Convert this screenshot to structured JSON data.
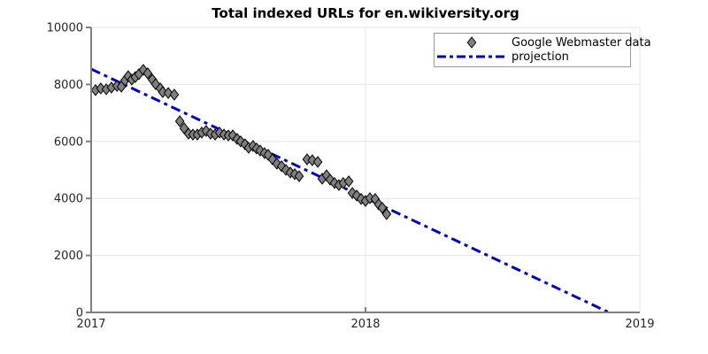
{
  "title": "Total indexed URLs for en.wikiversity.org",
  "colors": {
    "marker_fill": "#808080",
    "marker_stroke": "#000000",
    "projection": "#0000cc",
    "axis": "#7f7f7f",
    "grid": "#e4e4e4",
    "text": "#262626",
    "background": "#ffffff"
  },
  "legend": {
    "entries": [
      {
        "label": "Google Webmaster data",
        "sample": "diamond-marker"
      },
      {
        "label": "projection",
        "sample": "dashdot-line"
      }
    ]
  },
  "chart_data": {
    "type": "scatter",
    "title": "Total indexed URLs for en.wikiversity.org",
    "xlabel": "",
    "ylabel": "",
    "xlim": [
      2017,
      2019
    ],
    "ylim": [
      0,
      10000
    ],
    "x_ticks": [
      2017,
      2018,
      2019
    ],
    "y_ticks": [
      0,
      2000,
      4000,
      6000,
      8000,
      10000
    ],
    "grid": true,
    "legend_position": "top-right",
    "series": [
      {
        "name": "Google Webmaster data",
        "type": "scatter",
        "marker": "diamond",
        "points": [
          [
            2017.016,
            7800
          ],
          [
            2017.035,
            7860
          ],
          [
            2017.055,
            7830
          ],
          [
            2017.074,
            7890
          ],
          [
            2017.094,
            7950
          ],
          [
            2017.11,
            7920
          ],
          [
            2017.123,
            8140
          ],
          [
            2017.135,
            8290
          ],
          [
            2017.148,
            8170
          ],
          [
            2017.161,
            8260
          ],
          [
            2017.174,
            8360
          ],
          [
            2017.19,
            8510
          ],
          [
            2017.206,
            8390
          ],
          [
            2017.223,
            8170
          ],
          [
            2017.235,
            8010
          ],
          [
            2017.252,
            7860
          ],
          [
            2017.261,
            7730
          ],
          [
            2017.281,
            7700
          ],
          [
            2017.303,
            7640
          ],
          [
            2017.323,
            6710
          ],
          [
            2017.339,
            6460
          ],
          [
            2017.355,
            6270
          ],
          [
            2017.371,
            6240
          ],
          [
            2017.387,
            6240
          ],
          [
            2017.403,
            6310
          ],
          [
            2017.419,
            6370
          ],
          [
            2017.435,
            6270
          ],
          [
            2017.452,
            6240
          ],
          [
            2017.468,
            6310
          ],
          [
            2017.484,
            6240
          ],
          [
            2017.5,
            6210
          ],
          [
            2017.516,
            6210
          ],
          [
            2017.532,
            6090
          ],
          [
            2017.545,
            6000
          ],
          [
            2017.561,
            5900
          ],
          [
            2017.574,
            5780
          ],
          [
            2017.59,
            5840
          ],
          [
            2017.603,
            5750
          ],
          [
            2017.616,
            5680
          ],
          [
            2017.632,
            5590
          ],
          [
            2017.645,
            5530
          ],
          [
            2017.661,
            5370
          ],
          [
            2017.677,
            5220
          ],
          [
            2017.694,
            5130
          ],
          [
            2017.71,
            5000
          ],
          [
            2017.726,
            4910
          ],
          [
            2017.742,
            4850
          ],
          [
            2017.758,
            4780
          ],
          [
            2017.787,
            5370
          ],
          [
            2017.806,
            5340
          ],
          [
            2017.826,
            5280
          ],
          [
            2017.842,
            4690
          ],
          [
            2017.858,
            4810
          ],
          [
            2017.871,
            4660
          ],
          [
            2017.887,
            4540
          ],
          [
            2017.903,
            4470
          ],
          [
            2017.919,
            4540
          ],
          [
            2017.939,
            4600
          ],
          [
            2017.952,
            4190
          ],
          [
            2017.968,
            4100
          ],
          [
            2017.984,
            3980
          ],
          [
            2018.0,
            3910
          ],
          [
            2018.016,
            4010
          ],
          [
            2018.035,
            3980
          ],
          [
            2018.048,
            3790
          ],
          [
            2018.061,
            3670
          ],
          [
            2018.077,
            3450
          ]
        ]
      },
      {
        "name": "projection",
        "type": "line",
        "style": "dash-dot",
        "points": [
          [
            2017.0,
            8540
          ],
          [
            2018.887,
            0
          ]
        ]
      }
    ]
  }
}
